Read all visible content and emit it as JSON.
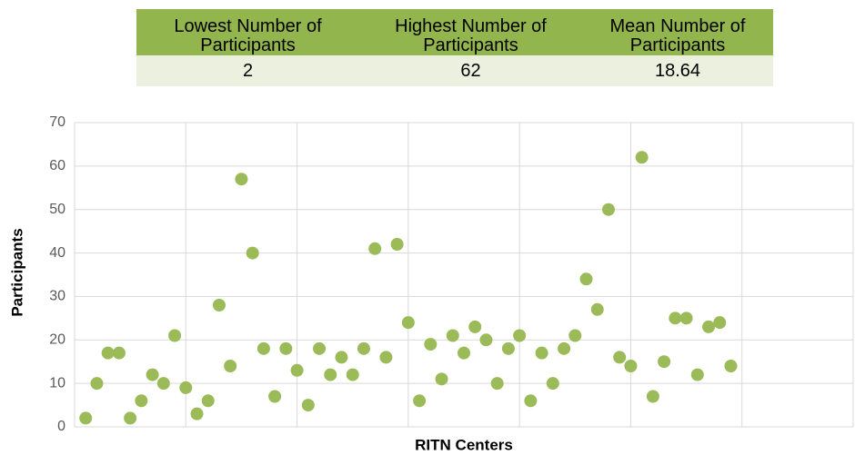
{
  "table": {
    "headers": [
      "Lowest Number of Participants",
      "Highest Number of Participants",
      "Mean Number of Participants"
    ],
    "rows": [
      [
        "2",
        "62",
        "18.64"
      ]
    ]
  },
  "chart_data": {
    "type": "scatter",
    "xlabel": "RITN Centers",
    "ylabel": "Participants",
    "x": [
      1,
      2,
      3,
      4,
      5,
      6,
      7,
      8,
      9,
      10,
      11,
      12,
      13,
      14,
      15,
      16,
      17,
      18,
      19,
      20,
      21,
      22,
      23,
      24,
      25,
      26,
      27,
      28,
      29,
      30,
      31,
      32,
      33,
      34,
      35,
      36,
      37,
      38,
      39,
      40,
      41,
      42,
      43,
      44,
      45,
      46,
      47,
      48,
      49,
      50,
      51,
      52,
      53,
      54,
      55,
      56,
      57,
      58,
      59
    ],
    "values": [
      2,
      10,
      17,
      17,
      2,
      6,
      12,
      10,
      21,
      9,
      3,
      6,
      28,
      14,
      57,
      40,
      18,
      7,
      18,
      13,
      5,
      18,
      12,
      16,
      12,
      18,
      41,
      16,
      42,
      24,
      6,
      19,
      11,
      21,
      17,
      23,
      20,
      10,
      18,
      21,
      6,
      17,
      10,
      18,
      21,
      34,
      27,
      50,
      16,
      14,
      62,
      7,
      15,
      25,
      25,
      12,
      23,
      24,
      14
    ],
    "color": "#9bbb59",
    "xlim": [
      0,
      70
    ],
    "xticks": [
      0,
      10,
      20,
      30,
      40,
      50,
      60,
      70
    ],
    "ylim": [
      0,
      70
    ],
    "yticks": [
      0,
      10,
      20,
      30,
      40,
      50,
      60,
      70
    ],
    "grid": true
  }
}
